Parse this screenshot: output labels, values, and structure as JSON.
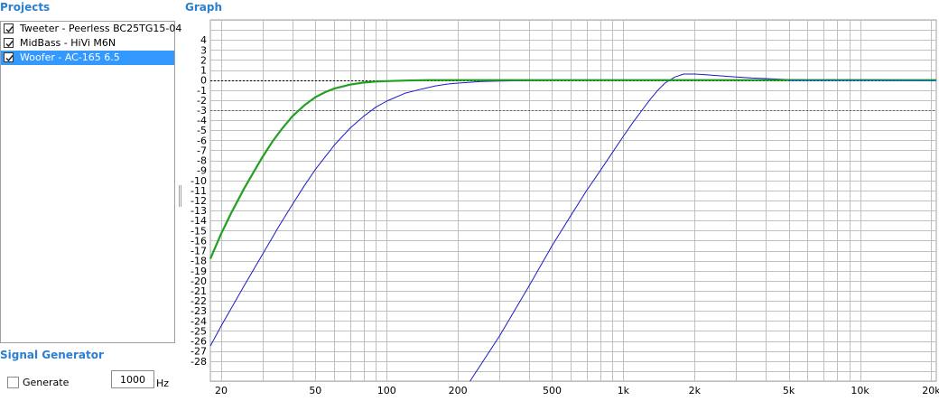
{
  "projects": {
    "title": "Projects",
    "items": [
      {
        "label": "Tweeter - Peerless BC25TG15-04",
        "checked": true,
        "selected": false
      },
      {
        "label": "MidBass - HiVi M6N",
        "checked": true,
        "selected": false
      },
      {
        "label": "Woofer - AC-165 6.5",
        "checked": true,
        "selected": true
      }
    ]
  },
  "graph": {
    "title": "Graph"
  },
  "signal_generator": {
    "title": "Signal Generator",
    "generate_label": "Generate",
    "generate_checked": false,
    "frequency_value": "1000",
    "unit": "Hz"
  },
  "colors": {
    "accent": "#2a7fd0",
    "selection": "#3399ff",
    "grid": "#c0c0c0",
    "curve_blue": "#1a1acc",
    "curve_green": "#22a022",
    "curve_teal": "#1070a0"
  },
  "chart_data": {
    "type": "line",
    "x_scale": "log",
    "xlim": [
      18,
      21000
    ],
    "ylim": [
      -30,
      6
    ],
    "x_ticks": [
      {
        "value": 20,
        "label": "20"
      },
      {
        "value": 50,
        "label": "50"
      },
      {
        "value": 100,
        "label": "100"
      },
      {
        "value": 200,
        "label": "200"
      },
      {
        "value": 500,
        "label": "500"
      },
      {
        "value": 1000,
        "label": "1k"
      },
      {
        "value": 2000,
        "label": "2k"
      },
      {
        "value": 5000,
        "label": "5k"
      },
      {
        "value": 10000,
        "label": "10k"
      },
      {
        "value": 20000,
        "label": "20k"
      }
    ],
    "y_ticks": [
      4,
      3,
      2,
      1,
      0,
      -1,
      -2,
      -3,
      -4,
      -5,
      -6,
      -7,
      -8,
      -9,
      -10,
      -11,
      -12,
      -13,
      -14,
      -15,
      -16,
      -17,
      -18,
      -19,
      -20,
      -21,
      -22,
      -23,
      -24,
      -25,
      -26,
      -27,
      -28
    ],
    "reference_lines": [
      0,
      -3
    ],
    "grid": true,
    "series": [
      {
        "key": "tweeter",
        "color": "#1a1acc",
        "width": 1,
        "x": [
          225,
          300,
          400,
          500,
          600,
          700,
          800,
          900,
          1000,
          1100,
          1200,
          1300,
          1400,
          1500,
          1650,
          1800,
          2000,
          2200,
          2500,
          3000,
          3500,
          4000,
          4500,
          5000,
          7000,
          10000,
          15000,
          21000
        ],
        "y": [
          -30,
          -25.5,
          -20.5,
          -16.5,
          -13.5,
          -11,
          -9,
          -7.2,
          -5.6,
          -4.2,
          -3,
          -1.9,
          -1,
          -0.3,
          0.3,
          0.6,
          0.6,
          0.55,
          0.45,
          0.3,
          0.2,
          0.15,
          0.1,
          0.05,
          0,
          0,
          0,
          0
        ]
      },
      {
        "key": "midbass",
        "color": "#1a1acc",
        "width": 1,
        "x": [
          18,
          20,
          25,
          30,
          35,
          40,
          45,
          50,
          60,
          70,
          80,
          90,
          100,
          120,
          140,
          160,
          180,
          200,
          250,
          300,
          400,
          600,
          1000,
          2000,
          5000,
          10000,
          21000
        ],
        "y": [
          -26.5,
          -24.5,
          -20.5,
          -17.3,
          -14.6,
          -12.4,
          -10.5,
          -8.9,
          -6.5,
          -4.8,
          -3.6,
          -2.7,
          -2.1,
          -1.3,
          -0.9,
          -0.6,
          -0.4,
          -0.3,
          -0.15,
          -0.1,
          -0.05,
          0,
          0,
          0,
          0,
          0,
          0
        ]
      },
      {
        "key": "woofer",
        "color": "#22a022",
        "width": 2.2,
        "x": [
          18,
          20,
          22,
          25,
          28,
          30,
          33,
          36,
          40,
          45,
          50,
          55,
          60,
          70,
          80,
          90,
          100,
          120,
          150,
          200,
          300,
          500,
          1000,
          2000,
          5000,
          10000,
          21000
        ],
        "y": [
          -17.8,
          -15.3,
          -13.3,
          -10.8,
          -8.8,
          -7.6,
          -6.1,
          -4.9,
          -3.6,
          -2.5,
          -1.7,
          -1.2,
          -0.85,
          -0.45,
          -0.25,
          -0.15,
          -0.1,
          -0.05,
          0,
          0,
          0,
          0,
          0,
          0,
          0,
          0,
          0
        ]
      },
      {
        "key": "tweeter-tail",
        "color": "#1070a0",
        "width": 1.6,
        "x": [
          5000,
          8000,
          12000,
          17000,
          21000
        ],
        "y": [
          0,
          0,
          0,
          -0.05,
          -0.05
        ]
      }
    ]
  }
}
